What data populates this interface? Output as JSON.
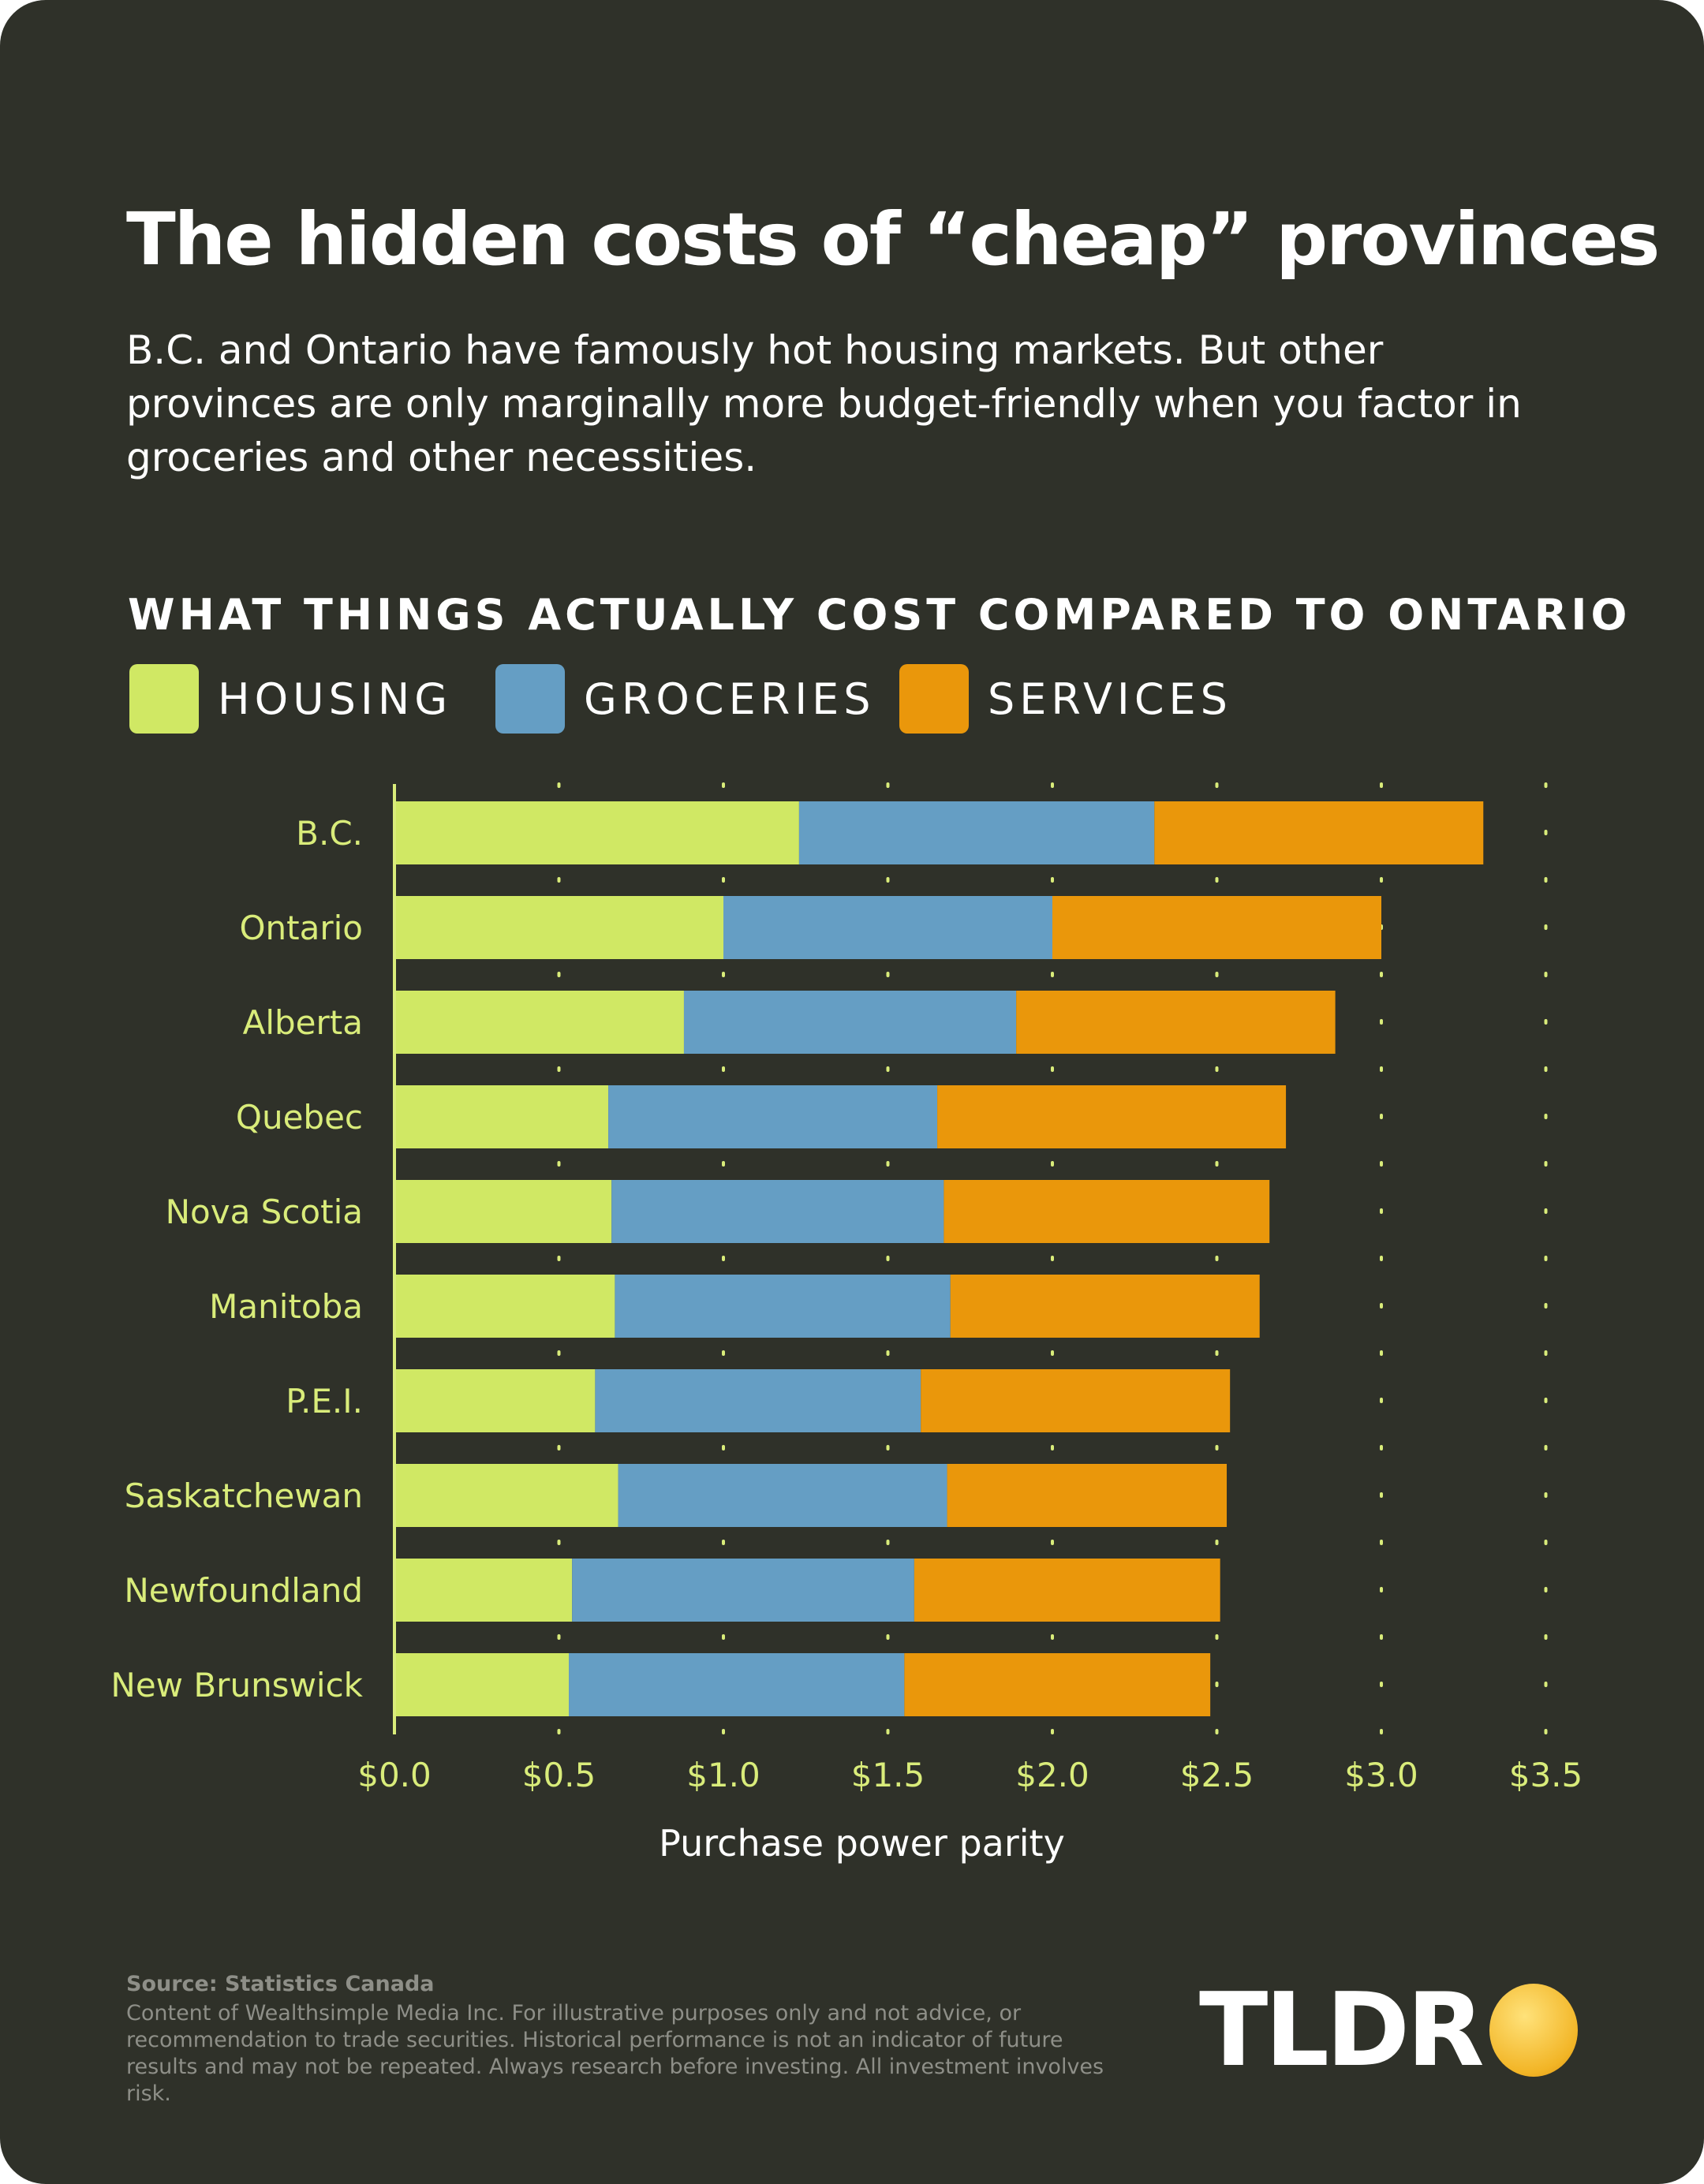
{
  "title": "The hidden costs of “cheap” provinces",
  "subtitle": "B.C. and Ontario have famously hot housing markets. But other provinces are only marginally more budget-friendly when you factor in groceries and other necessities.",
  "footer": {
    "source": "Source: Statistics Canada",
    "disclaimer": "Content of Wealthsimple Media Inc. For illustrative purposes only and not advice, or recommendation to trade securities. Historical performance is not an indicator of future results and may not be repeated. Always research before investing. All investment involves risk.",
    "logo": "TLDR"
  },
  "colors": {
    "background": "#2f3129",
    "housing": "#d0e864",
    "groceries": "#659ec4",
    "services": "#ea970b",
    "label": "#d9ec7a"
  },
  "chart_data": {
    "type": "bar",
    "orientation": "horizontal",
    "stacked": true,
    "title": "WHAT THINGS ACTUALLY COST COMPARED TO ONTARIO",
    "xlabel": "Purchase power parity",
    "ylabel": "",
    "xlim": [
      0,
      3.5
    ],
    "xticks": [
      "$0.0",
      "$0.5",
      "$1.0",
      "$1.5",
      "$2.0",
      "$2.5",
      "$3.0",
      "$3.5"
    ],
    "grid": "vertical dotted",
    "legend_position": "top-left",
    "categories": [
      "B.C.",
      "Ontario",
      "Alberta",
      "Quebec",
      "Nova Scotia",
      "Manitoba",
      "P.E.I.",
      "Saskatchewan",
      "Newfoundland",
      "New Brunswick"
    ],
    "series": [
      {
        "name": "HOUSING",
        "color": "#d0e864",
        "values": [
          1.23,
          1.0,
          0.88,
          0.65,
          0.66,
          0.67,
          0.61,
          0.68,
          0.54,
          0.53
        ]
      },
      {
        "name": "GROCERIES",
        "color": "#659ec4",
        "values": [
          1.08,
          1.0,
          1.01,
          1.0,
          1.01,
          1.02,
          0.99,
          1.0,
          1.04,
          1.02
        ]
      },
      {
        "name": "SERVICES",
        "color": "#ea970b",
        "values": [
          1.0,
          1.0,
          0.97,
          1.06,
          0.99,
          0.94,
          0.94,
          0.85,
          0.93,
          0.93
        ]
      }
    ]
  }
}
